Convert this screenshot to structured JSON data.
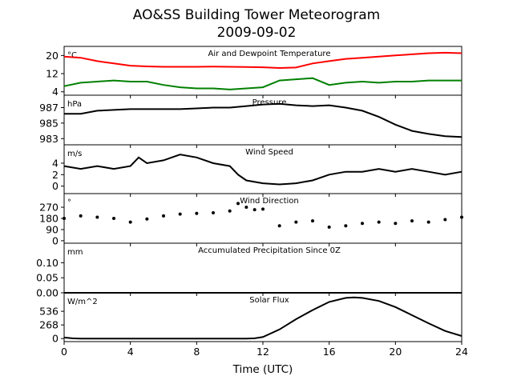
{
  "figure": {
    "title_line1": "AO&SS Building Tower Meteorogram",
    "title_line2": "2009-09-02",
    "xlabel": "Time (UTC)",
    "xticks": [
      0,
      4,
      8,
      12,
      16,
      20,
      24
    ],
    "xlim": [
      0,
      24
    ]
  },
  "chart_data": [
    {
      "type": "line",
      "title": "Air and Dewpoint Temperature",
      "unit": "°C",
      "ylim": [
        2.5,
        24
      ],
      "yticks": [
        4,
        12,
        20
      ],
      "series": [
        {
          "color": "#ff0000",
          "x": [
            0,
            1,
            2,
            3,
            4,
            5,
            6,
            7,
            8,
            9,
            10,
            11,
            12,
            13,
            14,
            15,
            16,
            17,
            18,
            19,
            20,
            21,
            22,
            23,
            24
          ],
          "y": [
            19.5,
            19.0,
            17.5,
            16.5,
            15.5,
            15.2,
            15.0,
            15.0,
            15.0,
            15.1,
            15.0,
            14.9,
            14.8,
            14.5,
            14.7,
            16.5,
            17.5,
            18.5,
            19.0,
            19.5,
            20.0,
            20.5,
            21.0,
            21.2,
            21.0
          ]
        },
        {
          "color": "#008000",
          "x": [
            0,
            1,
            2,
            3,
            4,
            5,
            6,
            7,
            8,
            9,
            10,
            11,
            12,
            13,
            14,
            15,
            16,
            17,
            18,
            19,
            20,
            21,
            22,
            23,
            24
          ],
          "y": [
            6.5,
            8.0,
            8.5,
            9.0,
            8.5,
            8.5,
            7.0,
            6.0,
            5.5,
            5.5,
            5.0,
            5.5,
            6.0,
            9.0,
            9.5,
            10.0,
            7.0,
            8.0,
            8.5,
            8.0,
            8.5,
            8.5,
            9.0,
            9.0,
            9.0
          ]
        }
      ]
    },
    {
      "type": "line",
      "title": "Pressure",
      "unit": "hPa",
      "ylim": [
        982.2,
        988.6
      ],
      "yticks": [
        983,
        985,
        987
      ],
      "series": [
        {
          "color": "#000000",
          "x": [
            0,
            1,
            2,
            3,
            4,
            5,
            6,
            7,
            8,
            9,
            10,
            11,
            12,
            13,
            14,
            15,
            16,
            17,
            18,
            19,
            20,
            21,
            22,
            23,
            24
          ],
          "y": [
            986.2,
            986.2,
            986.6,
            986.7,
            986.8,
            986.8,
            986.8,
            986.8,
            986.9,
            987.0,
            987.0,
            987.2,
            987.4,
            987.5,
            987.3,
            987.2,
            987.3,
            987.0,
            986.6,
            985.8,
            984.8,
            984.0,
            983.6,
            983.3,
            983.2
          ]
        }
      ]
    },
    {
      "type": "line",
      "title": "Wind Speed",
      "unit": "m/s",
      "ylim": [
        -1.3,
        7.2
      ],
      "yticks": [
        0,
        2,
        4
      ],
      "series": [
        {
          "color": "#000000",
          "x": [
            0,
            1,
            2,
            3,
            4,
            4.5,
            5,
            6,
            7,
            8,
            9,
            10,
            10.5,
            11,
            12,
            13,
            14,
            15,
            16,
            17,
            18,
            19,
            20,
            21,
            22,
            23,
            24
          ],
          "y": [
            3.5,
            3.0,
            3.5,
            3.0,
            3.5,
            5.0,
            4.0,
            4.5,
            5.5,
            5.0,
            4.0,
            3.5,
            2.0,
            1.0,
            0.5,
            0.3,
            0.5,
            1.0,
            2.0,
            2.5,
            2.5,
            3.0,
            2.5,
            3.0,
            2.5,
            2.0,
            2.5
          ]
        }
      ]
    },
    {
      "type": "scatter",
      "title": "Wind Direction",
      "unit": "°",
      "ylim": [
        -20,
        380
      ],
      "yticks": [
        0,
        90,
        180,
        270
      ],
      "series": [
        {
          "color": "#000000",
          "x": [
            0,
            1,
            2,
            3,
            4,
            5,
            6,
            7,
            8,
            9,
            10,
            10.5,
            11,
            11.5,
            12,
            13,
            14,
            15,
            16,
            17,
            18,
            19,
            20,
            21,
            22,
            23,
            24
          ],
          "y": [
            180,
            200,
            190,
            180,
            150,
            175,
            200,
            215,
            220,
            225,
            240,
            300,
            270,
            250,
            255,
            120,
            150,
            160,
            110,
            120,
            140,
            150,
            140,
            160,
            150,
            170,
            190
          ]
        }
      ]
    },
    {
      "type": "line",
      "title": "Accumulated Precipitation Since 0Z",
      "unit": "mm",
      "ylim": [
        0,
        0.165
      ],
      "yticks": [
        0.0,
        0.05,
        0.1
      ],
      "ytick_labels": [
        "0.00",
        "0.05",
        "0.10"
      ],
      "series": [
        {
          "color": "#000000",
          "x": [
            0,
            24
          ],
          "y": [
            0,
            0
          ]
        }
      ]
    },
    {
      "type": "line",
      "title": "Solar Flux",
      "unit": "W/m^2",
      "ylim": [
        -60,
        900
      ],
      "yticks": [
        0,
        268,
        536
      ],
      "series": [
        {
          "color": "#000000",
          "x": [
            0,
            0.5,
            1,
            2,
            4,
            6,
            8,
            10,
            11,
            11.5,
            12,
            13,
            14,
            15,
            16,
            17,
            17.5,
            18,
            19,
            20,
            21,
            22,
            23,
            24
          ],
          "y": [
            20,
            5,
            0,
            0,
            0,
            0,
            0,
            0,
            0,
            5,
            30,
            180,
            380,
            560,
            720,
            800,
            810,
            800,
            740,
            620,
            460,
            300,
            150,
            50
          ]
        }
      ]
    }
  ]
}
